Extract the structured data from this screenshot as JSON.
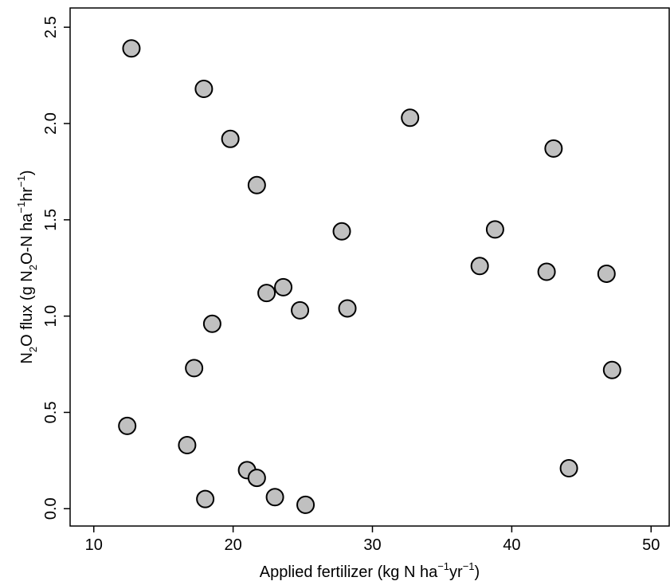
{
  "chart_data": {
    "type": "scatter",
    "title": "",
    "xlabel": {
      "text": "Applied fertilizer (kg N ha",
      "sup1": "−1",
      "mid": "yr",
      "sup2": "−1",
      "end": ")"
    },
    "ylabel": {
      "pre": "N",
      "sub1": "2",
      "mid1": "O flux (g N",
      "sub2": "2",
      "mid2": "O-N ha",
      "sup1": "−1",
      "mid3": "hr",
      "sup2": "−1",
      "end": ")"
    },
    "xlim": [
      8.3,
      51.3
    ],
    "ylim": [
      -0.09,
      2.6
    ],
    "xticks": [
      10,
      20,
      30,
      40,
      50
    ],
    "xtick_labels": [
      "10",
      "20",
      "30",
      "40",
      "50"
    ],
    "yticks": [
      0.0,
      0.5,
      1.0,
      1.5,
      2.0,
      2.5
    ],
    "ytick_labels": [
      "0.0",
      "0.5",
      "1.0",
      "1.5",
      "2.0",
      "2.5"
    ],
    "grid": false,
    "marker_fill": "#c0c0c0",
    "marker_edge": "#000000",
    "points": [
      {
        "x": 12.7,
        "y": 2.39
      },
      {
        "x": 17.9,
        "y": 2.18
      },
      {
        "x": 19.8,
        "y": 1.92
      },
      {
        "x": 21.7,
        "y": 1.68
      },
      {
        "x": 32.7,
        "y": 2.03
      },
      {
        "x": 43.0,
        "y": 1.87
      },
      {
        "x": 27.8,
        "y": 1.44
      },
      {
        "x": 38.8,
        "y": 1.45
      },
      {
        "x": 37.7,
        "y": 1.26
      },
      {
        "x": 42.5,
        "y": 1.23
      },
      {
        "x": 46.8,
        "y": 1.22
      },
      {
        "x": 22.4,
        "y": 1.12
      },
      {
        "x": 23.6,
        "y": 1.15
      },
      {
        "x": 24.8,
        "y": 1.03
      },
      {
        "x": 28.2,
        "y": 1.04
      },
      {
        "x": 18.5,
        "y": 0.96
      },
      {
        "x": 17.2,
        "y": 0.73
      },
      {
        "x": 47.2,
        "y": 0.72
      },
      {
        "x": 12.4,
        "y": 0.43
      },
      {
        "x": 16.7,
        "y": 0.33
      },
      {
        "x": 21.0,
        "y": 0.2
      },
      {
        "x": 21.7,
        "y": 0.16
      },
      {
        "x": 44.1,
        "y": 0.21
      },
      {
        "x": 18.0,
        "y": 0.05
      },
      {
        "x": 23.0,
        "y": 0.06
      },
      {
        "x": 25.2,
        "y": 0.02
      }
    ]
  }
}
